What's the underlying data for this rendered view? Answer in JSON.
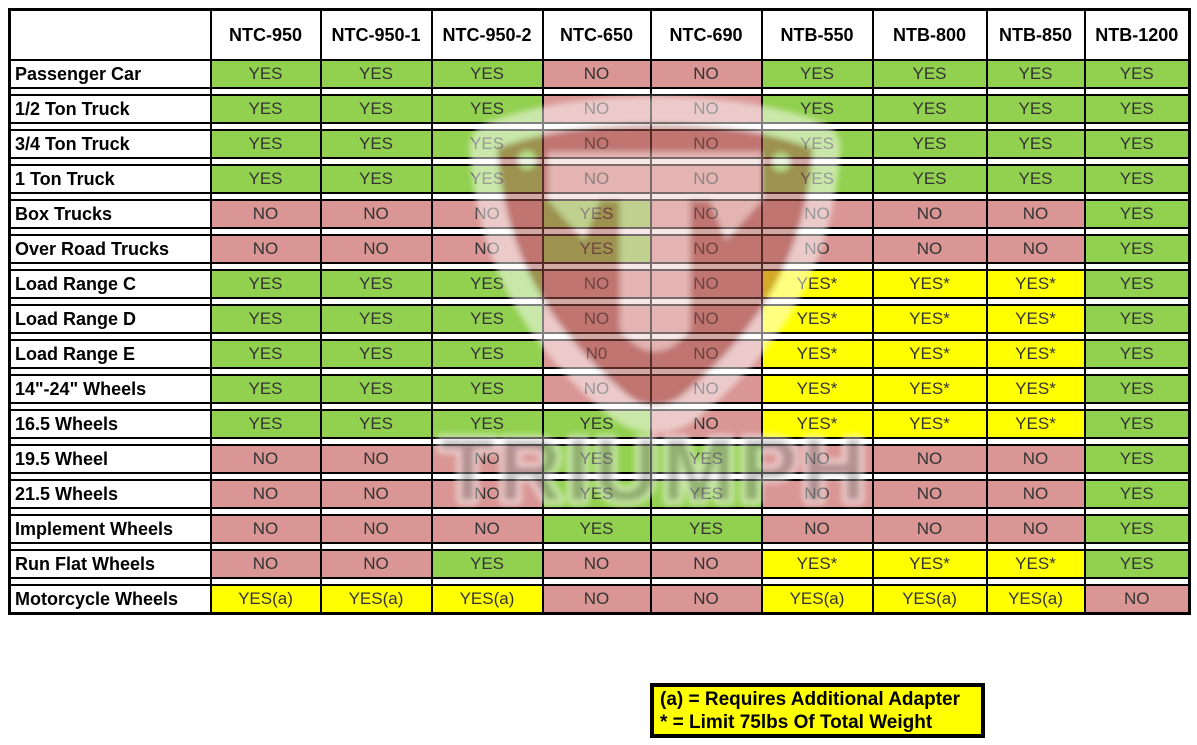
{
  "chart_data": {
    "type": "table",
    "title": "Tire changer model compatibility chart",
    "columns": [
      "NTC-950",
      "NTC-950-1",
      "NTC-950-2",
      "NTC-650",
      "NTC-690",
      "NTB-550",
      "NTB-800",
      "NTB-850",
      "NTB-1200"
    ],
    "rows": [
      {
        "label": "Passenger Car",
        "values": [
          "YES",
          "YES",
          "YES",
          "NO",
          "NO",
          "YES",
          "YES",
          "YES",
          "YES"
        ]
      },
      {
        "label": "1/2 Ton Truck",
        "values": [
          "YES",
          "YES",
          "YES",
          "NO",
          "NO",
          "YES",
          "YES",
          "YES",
          "YES"
        ]
      },
      {
        "label": "3/4 Ton Truck",
        "values": [
          "YES",
          "YES",
          "YES",
          "NO",
          "NO",
          "YES",
          "YES",
          "YES",
          "YES"
        ]
      },
      {
        "label": "1 Ton Truck",
        "values": [
          "YES",
          "YES",
          "YES",
          "NO",
          "NO",
          "YES",
          "YES",
          "YES",
          "YES"
        ]
      },
      {
        "label": "Box Trucks",
        "values": [
          "NO",
          "NO",
          "NO",
          "YES",
          "NO",
          "NO",
          "NO",
          "NO",
          "YES"
        ]
      },
      {
        "label": "Over Road Trucks",
        "values": [
          "NO",
          "NO",
          "NO",
          "YES",
          "NO",
          "NO",
          "NO",
          "NO",
          "YES"
        ]
      },
      {
        "label": "Load Range C",
        "values": [
          "YES",
          "YES",
          "YES",
          "NO",
          "NO",
          "YES*",
          "YES*",
          "YES*",
          "YES"
        ]
      },
      {
        "label": "Load Range D",
        "values": [
          "YES",
          "YES",
          "YES",
          "NO",
          "NO",
          "YES*",
          "YES*",
          "YES*",
          "YES"
        ]
      },
      {
        "label": "Load Range E",
        "values": [
          "YES",
          "YES",
          "YES",
          "N0",
          "NO",
          "YES*",
          "YES*",
          "YES*",
          "YES"
        ]
      },
      {
        "label": "14\"-24\" Wheels",
        "values": [
          "YES",
          "YES",
          "YES",
          "NO",
          "NO",
          "YES*",
          "YES*",
          "YES*",
          "YES"
        ]
      },
      {
        "label": "16.5 Wheels",
        "values": [
          "YES",
          "YES",
          "YES",
          "YES",
          "NO",
          "YES*",
          "YES*",
          "YES*",
          "YES"
        ]
      },
      {
        "label": "19.5 Wheel",
        "values": [
          "NO",
          "NO",
          "NO",
          "YES",
          "YES",
          "NO",
          "NO",
          "NO",
          "YES"
        ]
      },
      {
        "label": "21.5 Wheels",
        "values": [
          "NO",
          "NO",
          "NO",
          "YES",
          "YES",
          "NO",
          "NO",
          "NO",
          "YES"
        ]
      },
      {
        "label": "Implement Wheels",
        "values": [
          "NO",
          "NO",
          "NO",
          "YES",
          "YES",
          "NO",
          "NO",
          "NO",
          "YES"
        ]
      },
      {
        "label": "Run Flat Wheels",
        "values": [
          "NO",
          "NO",
          "YES",
          "NO",
          "NO",
          "YES*",
          "YES*",
          "YES*",
          "YES"
        ]
      },
      {
        "label": "Motorcycle Wheels",
        "values": [
          "YES(a)",
          "YES(a)",
          "YES(a)",
          "NO",
          "NO",
          "YES(a)",
          "YES(a)",
          "YES(a)",
          "NO"
        ]
      }
    ],
    "legend": [
      "(a) = Requires Additional Adapter",
      "* = Limit 75lbs Of Total Weight"
    ],
    "cell_colors": {
      "yes": "#92d050",
      "no": "#d99694",
      "conditional": "#ffff00"
    },
    "layout": {
      "grid": true,
      "legend_position": "bottom-center"
    }
  },
  "watermark": {
    "text": "TRIUMPH"
  }
}
